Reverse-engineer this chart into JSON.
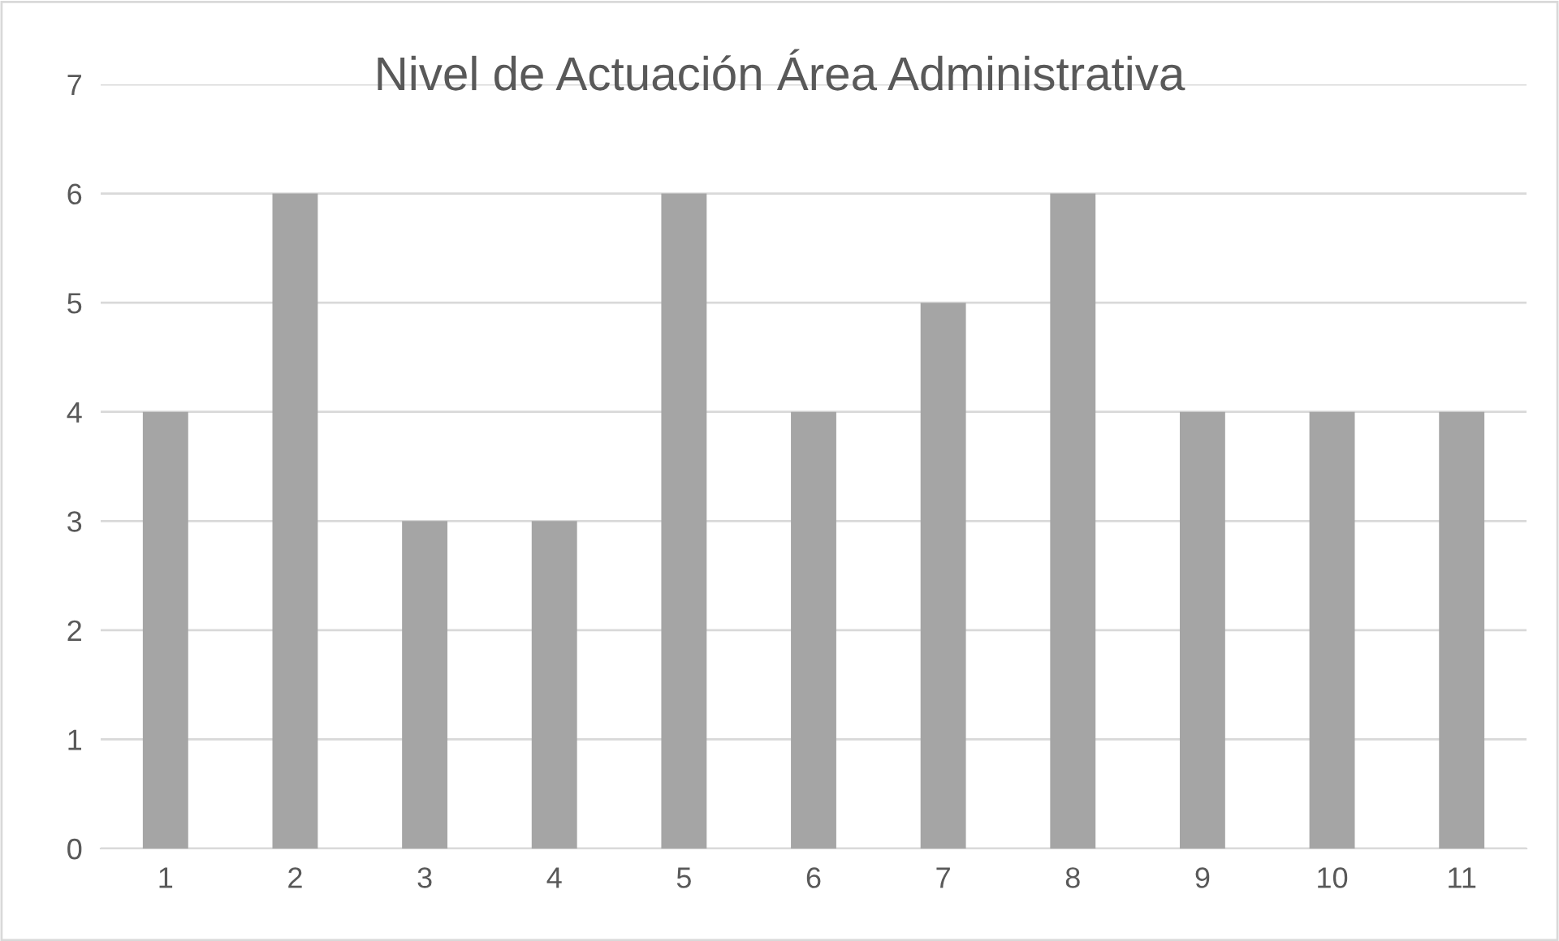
{
  "chart_data": {
    "type": "bar",
    "title": "Nivel de Actuación Área Administrativa",
    "categories": [
      "1",
      "2",
      "3",
      "4",
      "5",
      "6",
      "7",
      "8",
      "9",
      "10",
      "11"
    ],
    "values": [
      4,
      6,
      3,
      3,
      6,
      4,
      5,
      6,
      4,
      4,
      4
    ],
    "color": "#a5a5a5",
    "ylim": [
      0,
      7
    ],
    "yticks": [
      0,
      1,
      2,
      3,
      4,
      5,
      6,
      7
    ],
    "grid": "y",
    "legend": false
  }
}
